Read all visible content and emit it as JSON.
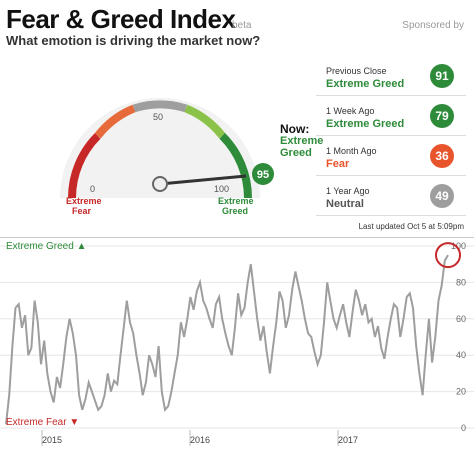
{
  "header": {
    "title": "Fear & Greed Index",
    "beta": "beta",
    "sponsored": "Sponsored by",
    "subtitle": "What emotion is driving the market now?"
  },
  "gauge": {
    "value": 95,
    "value_label": "95",
    "tick_0": "0",
    "tick_50": "50",
    "tick_100": "100",
    "left_label_1": "Extreme",
    "left_label_2": "Fear",
    "right_label_1": "Extreme",
    "right_label_2": "Greed",
    "now_title": "Now:",
    "now_line1": "Extreme",
    "now_line2": "Greed",
    "colors": {
      "fear": "#c62828",
      "neutral": "#9e9e9e",
      "greed": "#2e8b3a"
    }
  },
  "history": [
    {
      "label": "Previous Close",
      "value_text": "Extreme Greed",
      "score": "91",
      "color": "#2e8b3a"
    },
    {
      "label": "1 Week Ago",
      "value_text": "Extreme Greed",
      "score": "79",
      "color": "#2e8b3a"
    },
    {
      "label": "1 Month Ago",
      "value_text": "Fear",
      "score": "36",
      "color": "#e8552d"
    },
    {
      "label": "1 Year Ago",
      "value_text": "Neutral",
      "score": "49",
      "color": "#9e9e9e"
    }
  ],
  "updated": "Last updated Oct 5 at 5:09pm",
  "chart_labels": {
    "greed": "Extreme Greed",
    "fear": "Extreme Fear"
  },
  "chart_data": {
    "type": "line",
    "x_ticks": [
      "2015",
      "2016",
      "2017"
    ],
    "y_ticks": [
      0,
      20,
      40,
      60,
      80,
      100
    ],
    "ylim": [
      0,
      100
    ],
    "series": [
      {
        "values": [
          2,
          18,
          45,
          66,
          68,
          55,
          62,
          40,
          44,
          70,
          58,
          35,
          48,
          30,
          20,
          14,
          28,
          22,
          35,
          50,
          60,
          52,
          40,
          18,
          10,
          16,
          25,
          20,
          15,
          10,
          12,
          18,
          30,
          20,
          26,
          24,
          40,
          55,
          70,
          58,
          52,
          40,
          30,
          18,
          25,
          40,
          35,
          28,
          45,
          20,
          10,
          12,
          20,
          30,
          40,
          58,
          50,
          60,
          72,
          65,
          75,
          80,
          70,
          66,
          60,
          55,
          68,
          72,
          60,
          52,
          45,
          40,
          55,
          74,
          62,
          66,
          80,
          90,
          75,
          60,
          48,
          56,
          42,
          30,
          45,
          58,
          75,
          70,
          55,
          62,
          76,
          86,
          78,
          70,
          60,
          52,
          50,
          42,
          35,
          40,
          58,
          80,
          70,
          60,
          55,
          62,
          68,
          58,
          50,
          64,
          76,
          70,
          62,
          68,
          58,
          60,
          50,
          56,
          44,
          38,
          50,
          60,
          68,
          66,
          50,
          60,
          72,
          74,
          66,
          45,
          30,
          18,
          40,
          60,
          36,
          50,
          70,
          78,
          92,
          95
        ]
      }
    ]
  }
}
